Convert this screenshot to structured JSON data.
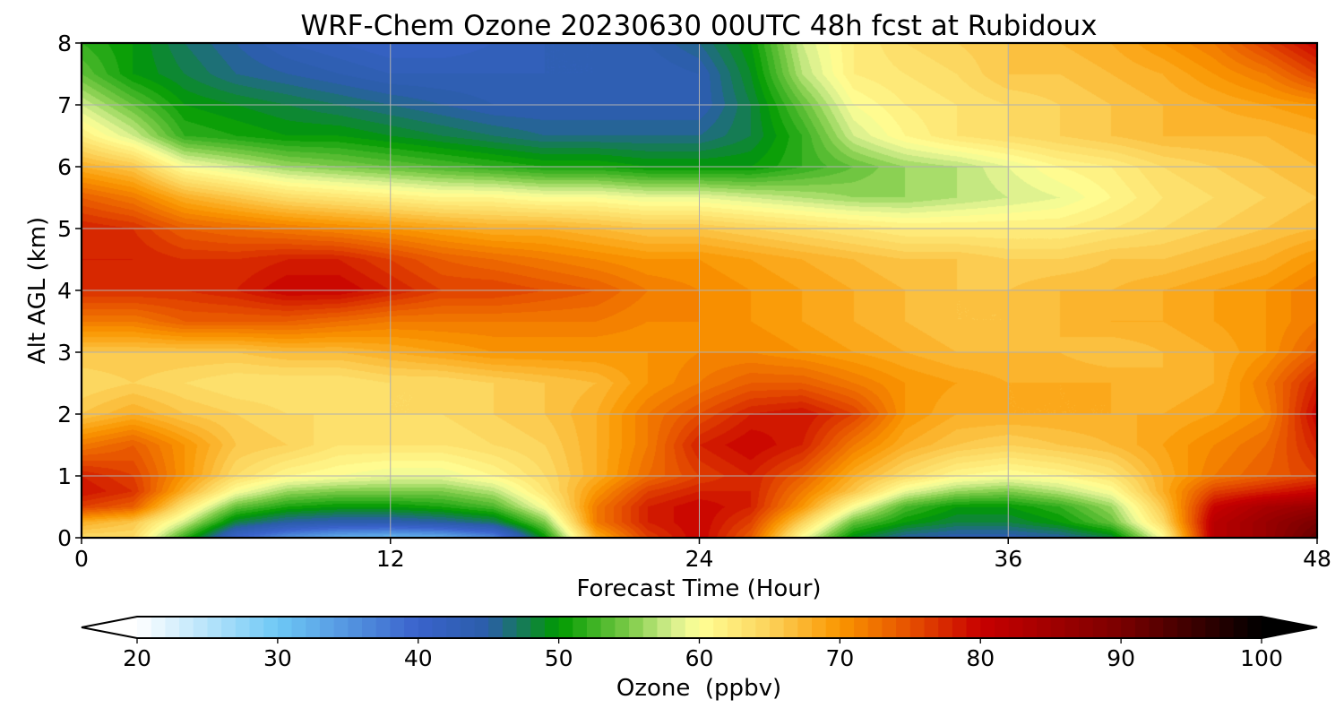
{
  "chart_data": {
    "type": "heatmap",
    "title": "WRF-Chem Ozone  20230630 00UTC 48h fcst at Rubidoux",
    "xlabel": "Forecast Time (Hour)",
    "ylabel": "Alt AGL (km)",
    "xlim": [
      0,
      48
    ],
    "ylim": [
      0,
      8
    ],
    "xticks": [
      0,
      12,
      24,
      36,
      48
    ],
    "yticks": [
      0,
      1,
      2,
      3,
      4,
      5,
      6,
      7,
      8
    ],
    "grid": true,
    "colorbar": {
      "label": "Ozone  (ppbv)",
      "range": [
        20,
        100
      ],
      "ticks": [
        20,
        30,
        40,
        50,
        60,
        70,
        80,
        90,
        100
      ],
      "extend": "both",
      "colormap_stops": [
        {
          "value": 20,
          "color": "#ffffff"
        },
        {
          "value": 30,
          "color": "#6ec8f5"
        },
        {
          "value": 40,
          "color": "#3a62cc"
        },
        {
          "value": 45,
          "color": "#2a5ea8"
        },
        {
          "value": 50,
          "color": "#009a00"
        },
        {
          "value": 55,
          "color": "#7ccb48"
        },
        {
          "value": 58,
          "color": "#d4ee8c"
        },
        {
          "value": 60,
          "color": "#ffff96"
        },
        {
          "value": 65,
          "color": "#fcd25a"
        },
        {
          "value": 70,
          "color": "#fa9600"
        },
        {
          "value": 75,
          "color": "#e65000"
        },
        {
          "value": 80,
          "color": "#c80000"
        },
        {
          "value": 90,
          "color": "#7a0000"
        },
        {
          "value": 100,
          "color": "#000000"
        }
      ]
    },
    "x": [
      0,
      2,
      4,
      6,
      8,
      10,
      12,
      14,
      16,
      18,
      20,
      22,
      24,
      26,
      28,
      30,
      32,
      34,
      36,
      38,
      40,
      42,
      44,
      46,
      48
    ],
    "y": [
      0,
      0.25,
      0.5,
      0.75,
      1,
      1.5,
      2,
      2.5,
      3,
      3.5,
      4,
      4.5,
      5,
      5.5,
      6,
      6.5,
      7,
      7.5,
      8
    ],
    "z": [
      [
        64,
        64,
        52,
        40,
        35,
        32,
        31,
        32,
        36,
        50,
        68,
        76,
        80,
        74,
        60,
        49,
        45,
        44,
        44,
        45,
        48,
        60,
        82,
        86,
        92
      ],
      [
        68,
        66,
        58,
        48,
        45,
        44,
        44,
        45,
        47,
        55,
        72,
        78,
        80,
        76,
        65,
        54,
        50,
        48,
        48,
        50,
        54,
        64,
        82,
        86,
        90
      ],
      [
        76,
        74,
        63,
        54,
        51,
        50,
        50,
        51,
        53,
        60,
        72,
        78,
        80,
        78,
        70,
        60,
        53,
        50,
        50,
        52,
        56,
        66,
        80,
        84,
        86
      ],
      [
        79,
        77,
        68,
        60,
        56,
        55,
        55,
        55,
        57,
        63,
        70,
        76,
        78,
        78,
        72,
        66,
        59,
        56,
        55,
        57,
        60,
        68,
        76,
        78,
        80
      ],
      [
        78,
        76,
        70,
        64,
        61,
        60,
        59,
        59,
        61,
        64,
        68,
        73,
        76,
        78,
        74,
        68,
        64,
        61,
        60,
        61,
        63,
        68,
        72,
        74,
        76
      ],
      [
        72,
        74,
        70,
        66,
        65,
        63,
        63,
        63,
        64,
        65,
        68,
        72,
        78,
        80,
        78,
        72,
        68,
        66,
        65,
        66,
        67,
        69,
        71,
        73,
        78
      ],
      [
        66,
        68,
        66,
        65,
        64,
        64,
        64,
        64,
        65,
        66,
        68,
        72,
        75,
        78,
        79,
        76,
        70,
        68,
        68,
        68,
        68,
        68,
        69,
        71,
        80
      ],
      [
        64,
        65,
        64,
        63,
        63,
        63,
        64,
        64,
        65,
        66,
        67,
        70,
        72,
        74,
        74,
        72,
        70,
        69,
        68,
        68,
        68,
        67,
        68,
        72,
        78
      ],
      [
        66,
        66,
        66,
        66,
        67,
        67,
        68,
        69,
        70,
        70,
        70,
        70,
        71,
        71,
        70,
        69,
        68,
        67,
        67,
        67,
        66,
        67,
        68,
        70,
        74
      ],
      [
        72,
        72,
        74,
        74,
        74,
        73,
        72,
        72,
        72,
        72,
        72,
        71,
        71,
        70,
        69,
        68,
        67,
        66,
        66,
        67,
        68,
        68,
        69,
        70,
        72
      ],
      [
        77,
        77,
        77,
        78,
        80,
        80,
        78,
        76,
        76,
        75,
        74,
        72,
        71,
        70,
        69,
        68,
        67,
        66,
        66,
        67,
        67,
        68,
        69,
        70,
        72
      ],
      [
        78,
        78,
        77,
        77,
        78,
        78,
        76,
        74,
        73,
        72,
        71,
        70,
        70,
        69,
        68,
        67,
        66,
        66,
        65,
        65,
        66,
        66,
        67,
        68,
        70
      ],
      [
        78,
        77,
        74,
        73,
        72,
        71,
        70,
        69,
        68,
        68,
        67,
        66,
        66,
        65,
        64,
        63,
        62,
        62,
        62,
        62,
        63,
        64,
        65,
        66,
        67
      ],
      [
        74,
        72,
        68,
        66,
        64,
        63,
        62,
        61,
        61,
        60,
        60,
        59,
        59,
        58,
        57,
        56,
        56,
        57,
        58,
        59,
        61,
        63,
        64,
        65,
        66
      ],
      [
        68,
        66,
        60,
        58,
        56,
        55,
        54,
        53,
        52,
        51,
        51,
        50,
        50,
        50,
        52,
        54,
        56,
        57,
        59,
        61,
        62,
        64,
        65,
        66,
        67
      ],
      [
        62,
        58,
        52,
        51,
        50,
        50,
        49,
        48,
        47,
        46,
        46,
        46,
        46,
        48,
        52,
        58,
        61,
        63,
        64,
        65,
        66,
        67,
        67,
        67,
        68
      ],
      [
        58,
        54,
        50,
        49,
        48,
        47,
        46,
        45,
        44,
        44,
        44,
        44,
        44,
        48,
        54,
        60,
        62,
        63,
        64,
        65,
        66,
        67,
        68,
        69,
        70
      ],
      [
        54,
        50,
        48,
        46,
        45,
        44,
        43,
        43,
        43,
        43,
        43,
        43,
        44,
        49,
        57,
        62,
        63,
        64,
        66,
        66,
        67,
        68,
        70,
        72,
        76
      ],
      [
        52,
        50,
        47,
        45,
        43,
        42,
        41,
        41,
        42,
        43,
        43,
        44,
        46,
        50,
        58,
        62,
        64,
        65,
        66,
        67,
        68,
        70,
        72,
        76,
        80
      ]
    ]
  }
}
